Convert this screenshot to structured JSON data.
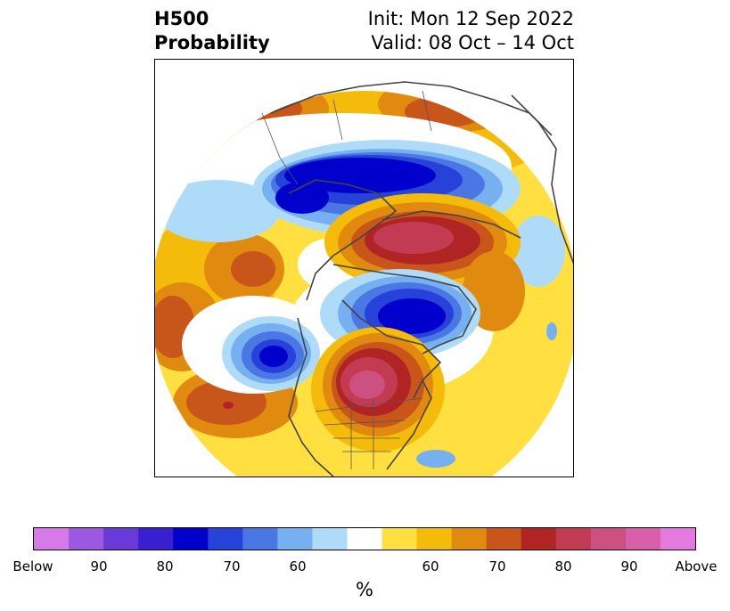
{
  "title": {
    "line1": "H500",
    "line2": "Probability"
  },
  "subtitle": {
    "init": "Init: Mon 12 Sep 2022",
    "valid": "Valid: 08 Oct – 14 Oct"
  },
  "colorbar": {
    "unit": "%",
    "labels": [
      "Below",
      "90",
      "80",
      "70",
      "60",
      "60",
      "70",
      "80",
      "90",
      "Above"
    ],
    "colors": [
      "#d77ae8",
      "#9b59e0",
      "#6a3ad8",
      "#3a1fd0",
      "#0000cc",
      "#2642d8",
      "#4a77e4",
      "#77b0f0",
      "#aedcf8",
      "#ffffff",
      "#ffe040",
      "#f5bb0a",
      "#e08a10",
      "#c8561a",
      "#b12424",
      "#c23b52",
      "#cc5080",
      "#d85fa8",
      "#e47ae0"
    ]
  },
  "colors": {
    "land_outline": "#444444",
    "frame": "#000000"
  }
}
